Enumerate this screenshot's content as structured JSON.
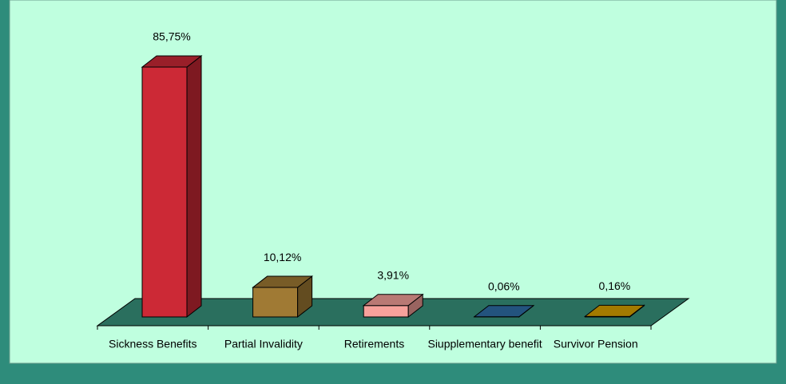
{
  "chart_data": {
    "type": "bar3d",
    "categories": [
      "Sickness Benefits",
      "Partial Invalidity",
      "Retirements",
      "Siupplementary benefit",
      "Survivor Pension"
    ],
    "values": [
      85.75,
      10.12,
      3.91,
      0.06,
      0.16
    ],
    "value_labels": [
      "85,75%",
      "10,12%",
      "3,91%",
      "0,06%",
      "0,16%"
    ],
    "colors": [
      "#cc2936",
      "#a07a34",
      "#f7a19b",
      "#2f6fa8",
      "#d9a200"
    ]
  }
}
